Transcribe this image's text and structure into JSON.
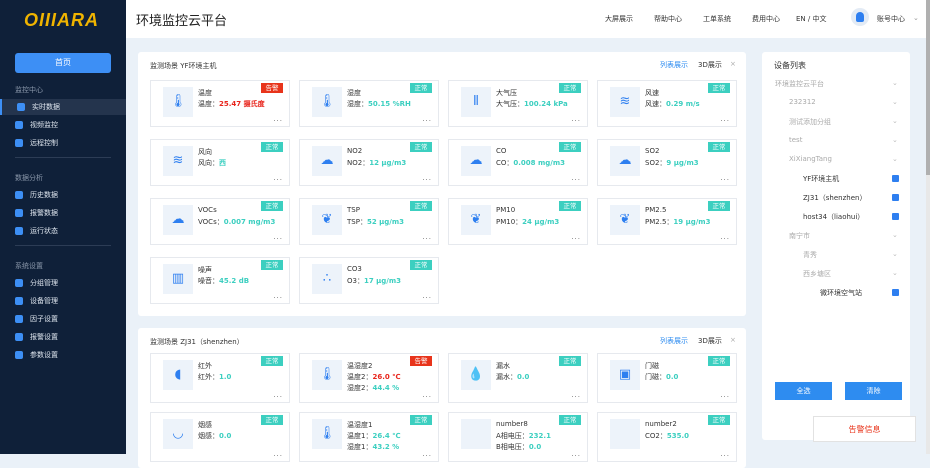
{
  "brand": "OIIIARA",
  "sidebar": {
    "home": "首页",
    "sections": [
      {
        "title": "监控中心",
        "items": [
          "实时数据",
          "视频监控",
          "远程控制"
        ]
      },
      {
        "title": "数据分析",
        "items": [
          "历史数据",
          "报警数据",
          "运行状态"
        ]
      },
      {
        "title": "系统设置",
        "items": [
          "分组管理",
          "设备管理",
          "因子设置",
          "报警设置",
          "参数设置"
        ]
      }
    ],
    "active": "实时数据"
  },
  "header": {
    "title": "环境监控云平台",
    "nav": [
      "大屏展示",
      "帮助中心",
      "工单系统",
      "费用中心",
      "EN / 中文"
    ],
    "account": "账号中心"
  },
  "panels": [
    {
      "title": "监测场景 YF环境主机",
      "list_view": "列表展示",
      "view_3d": "3D展示",
      "cards": [
        {
          "name": "温度",
          "icon": "thermometer-icon",
          "glyph": "🌡",
          "status": "告警",
          "lines": [
            {
              "label": "温度：",
              "value": "25.47 摄氏度",
              "alarm": true
            }
          ]
        },
        {
          "name": "湿度",
          "icon": "thermometer-icon",
          "glyph": "🌡",
          "status": "正常",
          "lines": [
            {
              "label": "湿度：",
              "value": "50.15 %RH"
            }
          ]
        },
        {
          "name": "大气压",
          "icon": "pressure-icon",
          "glyph": "⫴",
          "status": "正常",
          "lines": [
            {
              "label": "大气压：",
              "value": "100.24 kPa"
            }
          ]
        },
        {
          "name": "风速",
          "icon": "wind-icon",
          "glyph": "≋",
          "status": "正常",
          "lines": [
            {
              "label": "风速：",
              "value": "0.29 m/s"
            }
          ]
        },
        {
          "name": "风向",
          "icon": "wind-icon",
          "glyph": "≋",
          "status": "正常",
          "lines": [
            {
              "label": "风向：",
              "value": "西"
            }
          ]
        },
        {
          "name": "NO2",
          "icon": "cloud-icon",
          "glyph": "☁",
          "status": "正常",
          "lines": [
            {
              "label": "NO2：",
              "value": "12 μg/m3"
            }
          ]
        },
        {
          "name": "CO",
          "icon": "cloud-icon",
          "glyph": "☁",
          "status": "正常",
          "lines": [
            {
              "label": "CO：",
              "value": "0.008 mg/m3"
            }
          ]
        },
        {
          "name": "SO2",
          "icon": "cloud-icon",
          "glyph": "☁",
          "status": "正常",
          "lines": [
            {
              "label": "SO2：",
              "value": "9 μg/m3"
            }
          ]
        },
        {
          "name": "VOCs",
          "icon": "cloud-icon",
          "glyph": "☁",
          "status": "正常",
          "lines": [
            {
              "label": "VOCs：",
              "value": "0.007 mg/m3"
            }
          ]
        },
        {
          "name": "TSP",
          "icon": "leaf-icon",
          "glyph": "❦",
          "status": "正常",
          "lines": [
            {
              "label": "TSP：",
              "value": "52 μg/m3"
            }
          ]
        },
        {
          "name": "PM10",
          "icon": "leaf-icon",
          "glyph": "❦",
          "status": "正常",
          "lines": [
            {
              "label": "PM10：",
              "value": "24 μg/m3"
            }
          ]
        },
        {
          "name": "PM2.5",
          "icon": "leaf-icon",
          "glyph": "❦",
          "status": "正常",
          "lines": [
            {
              "label": "PM2.5：",
              "value": "19 μg/m3"
            }
          ]
        },
        {
          "name": "噪声",
          "icon": "sound-wave-icon",
          "glyph": "▥",
          "status": "正常",
          "lines": [
            {
              "label": "噪音：",
              "value": "45.2 dB"
            }
          ]
        },
        {
          "name": "CO3",
          "icon": "particles-icon",
          "glyph": "∴",
          "status": "正常",
          "lines": [
            {
              "label": "O3：",
              "value": "17 μg/m3"
            }
          ]
        }
      ]
    },
    {
      "title": "监测场景 ZJ31（shenzhen）",
      "list_view": "列表展示",
      "view_3d": "3D展示",
      "cards": [
        {
          "name": "红外",
          "icon": "infrared-icon",
          "glyph": "◖",
          "status": "正常",
          "lines": [
            {
              "label": "红外：",
              "value": "1.0"
            }
          ]
        },
        {
          "name": "温湿度2",
          "icon": "thermometer-icon",
          "glyph": "🌡",
          "status": "告警",
          "lines": [
            {
              "label": "温度2：",
              "value": "26.0 ℃",
              "alarm": true
            },
            {
              "label": "湿度2：",
              "value": "44.4 %"
            }
          ]
        },
        {
          "name": "漏水",
          "icon": "water-drop-icon",
          "glyph": "💧",
          "status": "正常",
          "lines": [
            {
              "label": "漏水：",
              "value": "0.0"
            }
          ]
        },
        {
          "name": "门磁",
          "icon": "door-sensor-icon",
          "glyph": "▣",
          "status": "正常",
          "lines": [
            {
              "label": "门磁：",
              "value": "0.0"
            }
          ]
        },
        {
          "name": "烟感",
          "icon": "smoke-detector-icon",
          "glyph": "◡",
          "status": "正常",
          "lines": [
            {
              "label": "烟感：",
              "value": "0.0"
            }
          ]
        },
        {
          "name": "温湿度1",
          "icon": "thermometer-icon",
          "glyph": "🌡",
          "status": "正常",
          "lines": [
            {
              "label": "温度1：",
              "value": "26.4 ℃"
            },
            {
              "label": "湿度1：",
              "value": "43.2 %"
            }
          ]
        },
        {
          "name": "number8",
          "icon": "blank-icon",
          "glyph": "",
          "status": "正常",
          "lines": [
            {
              "label": "A相电压：",
              "value": "232.1"
            },
            {
              "label": "B相电压：",
              "value": "0.0"
            }
          ]
        },
        {
          "name": "number2",
          "icon": "blank-icon",
          "glyph": "",
          "status": "正常",
          "lines": [
            {
              "label": "CO2：",
              "value": "535.0"
            }
          ]
        }
      ]
    }
  ],
  "devices": {
    "title": "设备列表",
    "tree": [
      {
        "label": "环境监控云平台",
        "level": 0,
        "leaf": false
      },
      {
        "label": "232312",
        "level": 1,
        "leaf": false
      },
      {
        "label": "测试添加分组",
        "level": 1,
        "leaf": false
      },
      {
        "label": "test",
        "level": 1,
        "leaf": false
      },
      {
        "label": "XiXiangTang",
        "level": 1,
        "leaf": false
      },
      {
        "label": "YF环境主机",
        "level": 2,
        "leaf": true,
        "checked": true
      },
      {
        "label": "ZJ31（shenzhen）",
        "level": 2,
        "leaf": true,
        "checked": true
      },
      {
        "label": "host34（liaohui）",
        "level": 2,
        "leaf": true,
        "checked": true
      },
      {
        "label": "南宁市",
        "level": 1,
        "leaf": false
      },
      {
        "label": "青秀",
        "level": 2,
        "leaf": false
      },
      {
        "label": "西乡塘区",
        "level": 2,
        "leaf": false
      },
      {
        "label": "微环境空气站",
        "level": 3,
        "leaf": true,
        "checked": true
      }
    ],
    "select_all": "全选",
    "clear": "清除"
  },
  "alarm_info": "告警信息",
  "colors": {
    "accent": "#2e8cf0",
    "normal": "#3ccfc0",
    "alarm": "#e8341b",
    "sidebar": "#0f2039",
    "logo": "#f0b400"
  }
}
